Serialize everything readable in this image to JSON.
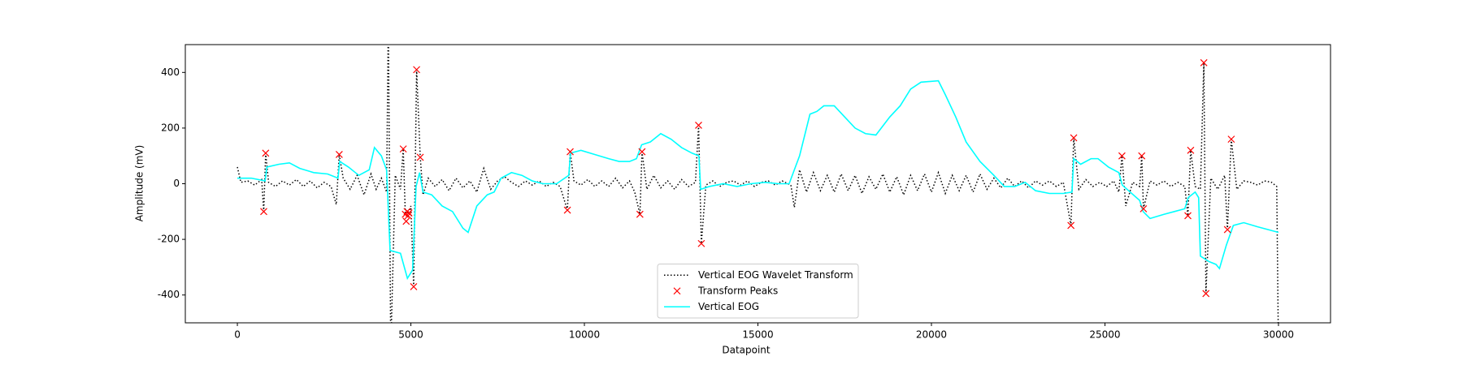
{
  "chart_data": {
    "type": "line",
    "x_label": "Datapoint",
    "y_label": "Amplitude (mV)",
    "xlim": [
      -1500,
      31500
    ],
    "ylim": [
      -500,
      500
    ],
    "xticks": [
      0,
      5000,
      10000,
      15000,
      20000,
      25000,
      30000
    ],
    "yticks": [
      -400,
      -200,
      0,
      200,
      400
    ],
    "legend": "lower center",
    "series": [
      {
        "name": "Vertical EOG Wavelet Transform",
        "type": "line",
        "color": "#000000",
        "linestyle": "dotted",
        "x": [
          0,
          100,
          300,
          500,
          700,
          760,
          815,
          900,
          1100,
          1300,
          1500,
          1700,
          1900,
          2100,
          2300,
          2500,
          2700,
          2850,
          2935,
          3050,
          3250,
          3450,
          3650,
          3850,
          4000,
          4150,
          4300,
          4350,
          4420,
          4550,
          4700,
          4780,
          4840,
          4890,
          4920,
          4945,
          5000,
          5080,
          5165,
          5270,
          5350,
          5500,
          5700,
          5900,
          6100,
          6300,
          6500,
          6700,
          6900,
          7100,
          7300,
          7500,
          7700,
          7900,
          8100,
          8300,
          8500,
          8700,
          8900,
          9100,
          9300,
          9510,
          9590,
          9700,
          9900,
          10100,
          10300,
          10500,
          10700,
          10900,
          11100,
          11300,
          11450,
          11600,
          11660,
          11800,
          12000,
          12200,
          12400,
          12600,
          12800,
          13000,
          13200,
          13290,
          13370,
          13500,
          13700,
          13900,
          14100,
          14300,
          14500,
          14700,
          14900,
          15100,
          15300,
          15500,
          15700,
          15950,
          16050,
          16200,
          16400,
          16600,
          16800,
          17000,
          17200,
          17400,
          17600,
          17800,
          18000,
          18200,
          18400,
          18600,
          18800,
          19000,
          19200,
          19400,
          19600,
          19800,
          20000,
          20200,
          20400,
          20600,
          20800,
          21000,
          21200,
          21400,
          21600,
          21800,
          22000,
          22200,
          22400,
          22600,
          22800,
          23000,
          23200,
          23400,
          23600,
          23800,
          24020,
          24100,
          24250,
          24450,
          24650,
          24850,
          25050,
          25250,
          25400,
          25490,
          25600,
          25800,
          26000,
          26060,
          26110,
          26300,
          26500,
          26700,
          26900,
          27100,
          27300,
          27390,
          27470,
          27600,
          27750,
          27850,
          27910,
          28050,
          28250,
          28450,
          28530,
          28640,
          28800,
          29000,
          29200,
          29400,
          29600,
          29800,
          29950,
          30000
        ],
        "values": [
          60,
          5,
          10,
          -5,
          15,
          -100,
          110,
          5,
          -10,
          10,
          -5,
          15,
          -10,
          10,
          -15,
          5,
          -10,
          -75,
          105,
          20,
          -20,
          30,
          -40,
          35,
          -20,
          20,
          -30,
          600,
          -600,
          30,
          -20,
          125,
          -110,
          -100,
          -115,
          -105,
          -80,
          -370,
          410,
          95,
          -40,
          20,
          -10,
          15,
          -25,
          20,
          -15,
          10,
          -30,
          55,
          -20,
          10,
          25,
          5,
          -10,
          10,
          -5,
          10,
          -10,
          5,
          -10,
          -95,
          115,
          10,
          -5,
          15,
          -10,
          10,
          -10,
          20,
          -15,
          10,
          -30,
          -110,
          115,
          -20,
          30,
          -15,
          10,
          -20,
          15,
          -10,
          5,
          210,
          -215,
          -5,
          10,
          -10,
          5,
          10,
          -5,
          10,
          -10,
          5,
          10,
          -5,
          10,
          -5,
          -85,
          50,
          -30,
          40,
          -25,
          30,
          -30,
          35,
          -25,
          30,
          -35,
          25,
          -20,
          35,
          -30,
          25,
          -40,
          30,
          -25,
          35,
          -30,
          40,
          -35,
          30,
          -25,
          30,
          -30,
          35,
          -20,
          20,
          -15,
          20,
          -10,
          10,
          -15,
          10,
          -5,
          10,
          -10,
          5,
          -150,
          165,
          -20,
          15,
          -10,
          5,
          -10,
          10,
          -30,
          100,
          -80,
          5,
          -10,
          100,
          -90,
          10,
          -5,
          10,
          -10,
          5,
          -10,
          -115,
          120,
          -10,
          -20,
          435,
          -395,
          20,
          -20,
          30,
          -165,
          160,
          -20,
          10,
          5,
          -5,
          10,
          5,
          -10,
          -600
        ]
      },
      {
        "name": "Transform Peaks",
        "type": "scatter",
        "color": "#ff0000",
        "marker": "x",
        "x": [
          760,
          815,
          2935,
          4780,
          4840,
          4865,
          4890,
          4920,
          4945,
          5080,
          5165,
          5270,
          9510,
          9590,
          11600,
          11660,
          13290,
          13370,
          24020,
          24100,
          25490,
          26060,
          26110,
          27390,
          27470,
          27850,
          27910,
          28530,
          28640
        ],
        "values": [
          -100,
          110,
          105,
          125,
          -110,
          -135,
          -100,
          -115,
          -105,
          -370,
          410,
          95,
          -95,
          115,
          -110,
          115,
          210,
          -215,
          -150,
          165,
          100,
          100,
          -90,
          -115,
          120,
          435,
          -395,
          -165,
          160
        ]
      },
      {
        "name": "Vertical EOG",
        "type": "line",
        "color": "#00ffff",
        "linestyle": "solid",
        "x": [
          0,
          400,
          800,
          850,
          1200,
          1500,
          1800,
          2200,
          2600,
          2900,
          2950,
          3200,
          3500,
          3800,
          3950,
          4150,
          4300,
          4400,
          4700,
          4900,
          5050,
          5150,
          5250,
          5350,
          5600,
          5900,
          6200,
          6500,
          6650,
          6900,
          7200,
          7400,
          7600,
          7900,
          8200,
          8500,
          8800,
          9200,
          9550,
          9600,
          9900,
          10300,
          10700,
          11000,
          11300,
          11500,
          11650,
          11900,
          12200,
          12500,
          12800,
          13100,
          13300,
          13350,
          13600,
          14000,
          14400,
          14800,
          15200,
          15600,
          15900,
          16200,
          16500,
          16700,
          16900,
          17200,
          17500,
          17800,
          18100,
          18400,
          18800,
          19100,
          19400,
          19700,
          20200,
          20400,
          20700,
          21000,
          21400,
          21800,
          22100,
          22400,
          22700,
          23000,
          23400,
          23800,
          24050,
          24100,
          24300,
          24600,
          24800,
          25100,
          25400,
          25500,
          26000,
          26100,
          26300,
          26700,
          27000,
          27300,
          27400,
          27600,
          27700,
          27750,
          28000,
          28200,
          28300,
          28500,
          28700,
          29000,
          29400,
          30000
        ],
        "values": [
          20,
          20,
          10,
          60,
          70,
          75,
          55,
          40,
          35,
          20,
          80,
          60,
          30,
          50,
          130,
          100,
          50,
          -240,
          -250,
          -340,
          -310,
          -10,
          40,
          -30,
          -40,
          -80,
          -100,
          -160,
          -175,
          -80,
          -40,
          -30,
          20,
          40,
          30,
          10,
          0,
          0,
          30,
          110,
          120,
          105,
          90,
          80,
          80,
          90,
          140,
          150,
          180,
          160,
          130,
          110,
          100,
          -20,
          -10,
          0,
          -10,
          0,
          5,
          0,
          0,
          100,
          250,
          260,
          280,
          280,
          240,
          200,
          180,
          175,
          240,
          280,
          340,
          365,
          370,
          320,
          240,
          150,
          80,
          30,
          -10,
          -10,
          5,
          -25,
          -35,
          -35,
          -30,
          90,
          70,
          90,
          90,
          60,
          40,
          -5,
          -60,
          -100,
          -125,
          -110,
          -100,
          -90,
          -50,
          -30,
          -50,
          -260,
          -280,
          -290,
          -305,
          -220,
          -150,
          -140,
          -155,
          -175
        ]
      }
    ]
  }
}
